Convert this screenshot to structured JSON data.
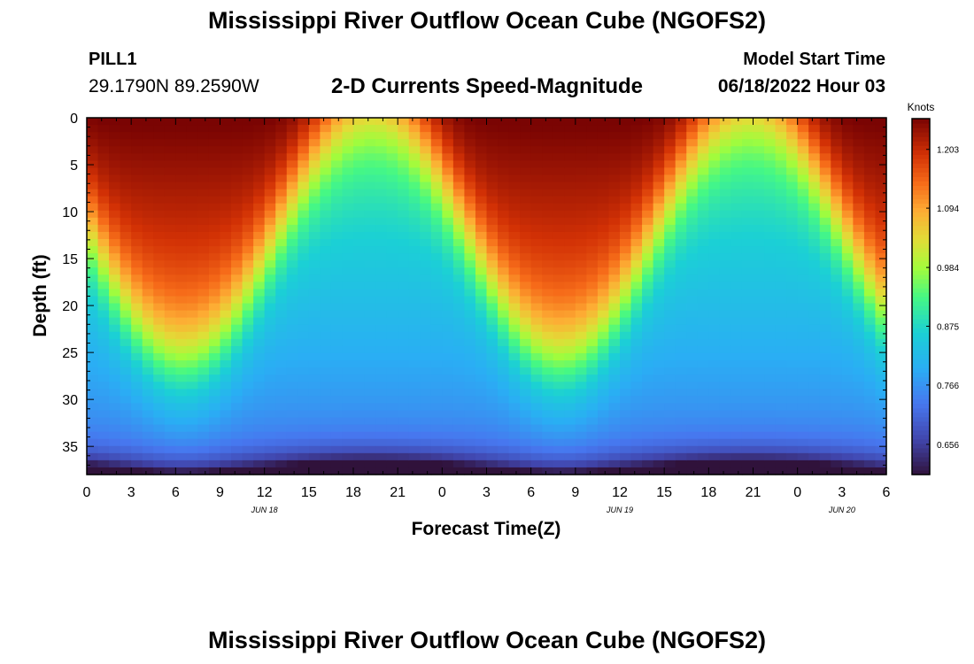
{
  "page": {
    "title": "Mississippi River Outflow Ocean Cube (NGOFS2)",
    "title_repeat": "Mississippi River Outflow Ocean Cube (NGOFS2)",
    "station_id": "PILL1",
    "station_coords": "29.1790N  89.2590W",
    "subtitle": "2-D Currents Speed-Magnitude",
    "model_start_label": "Model Start Time",
    "model_start_value": "06/18/2022 Hour 03"
  },
  "chart_data": {
    "type": "heatmap",
    "title": "2-D Currents Speed-Magnitude",
    "xlabel": "Forecast Time(Z)",
    "ylabel": "Depth (ft)",
    "x_range_hours": [
      0,
      54
    ],
    "x_ticks": [
      "0",
      "3",
      "6",
      "9",
      "12",
      "15",
      "18",
      "21",
      "0",
      "3",
      "6",
      "9",
      "12",
      "15",
      "18",
      "21",
      "0",
      "3",
      "6"
    ],
    "x_date_labels": [
      {
        "label": "JUN 18",
        "at_hour": 12
      },
      {
        "label": "JUN 19",
        "at_hour": 36
      },
      {
        "label": "JUN 20",
        "at_hour": 51
      }
    ],
    "y_range_ft": [
      0,
      38
    ],
    "y_inverted": true,
    "y_ticks": [
      0,
      5,
      10,
      15,
      20,
      25,
      30,
      35
    ],
    "colorbar": {
      "unit": "Knots",
      "ticks": [
        0.656,
        0.766,
        0.875,
        0.984,
        1.094,
        1.203
      ],
      "range": [
        0.6,
        1.26
      ],
      "colormap": "turbo"
    },
    "features": [
      {
        "description_hour": 6,
        "max_depth_high_speed_ft": 26,
        "surface_speed_knots": 1.26
      },
      {
        "description_hour": 20,
        "max_depth_high_speed_ft": 0,
        "surface_speed_knots": 1.0
      },
      {
        "description_hour": 31,
        "max_depth_high_speed_ft": 25,
        "surface_speed_knots": 1.26
      },
      {
        "description_hour": 42,
        "max_depth_high_speed_ft": 0,
        "surface_speed_knots": 0.98
      }
    ],
    "grid": false,
    "legend": "right colorbar"
  }
}
